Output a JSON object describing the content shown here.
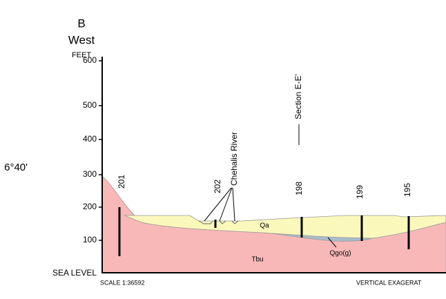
{
  "header": {
    "label": "B",
    "direction": "West",
    "units": "FEET",
    "latitude": "6°40'"
  },
  "axis": {
    "ticks": [
      "600",
      "500",
      "400",
      "300",
      "200",
      "100"
    ],
    "base": "SEA LEVEL"
  },
  "wells": [
    "201",
    "202",
    "198",
    "199",
    "195"
  ],
  "features": {
    "river": "Chehalis River",
    "section": "Section E-E'"
  },
  "units": {
    "alluvium": "Qa",
    "bedrock": "Tbu",
    "gravel": "Qgo(g)"
  },
  "footer": {
    "scale": "SCALE 1:36592",
    "exaggeration": "VERTICAL EXAGERAT"
  }
}
